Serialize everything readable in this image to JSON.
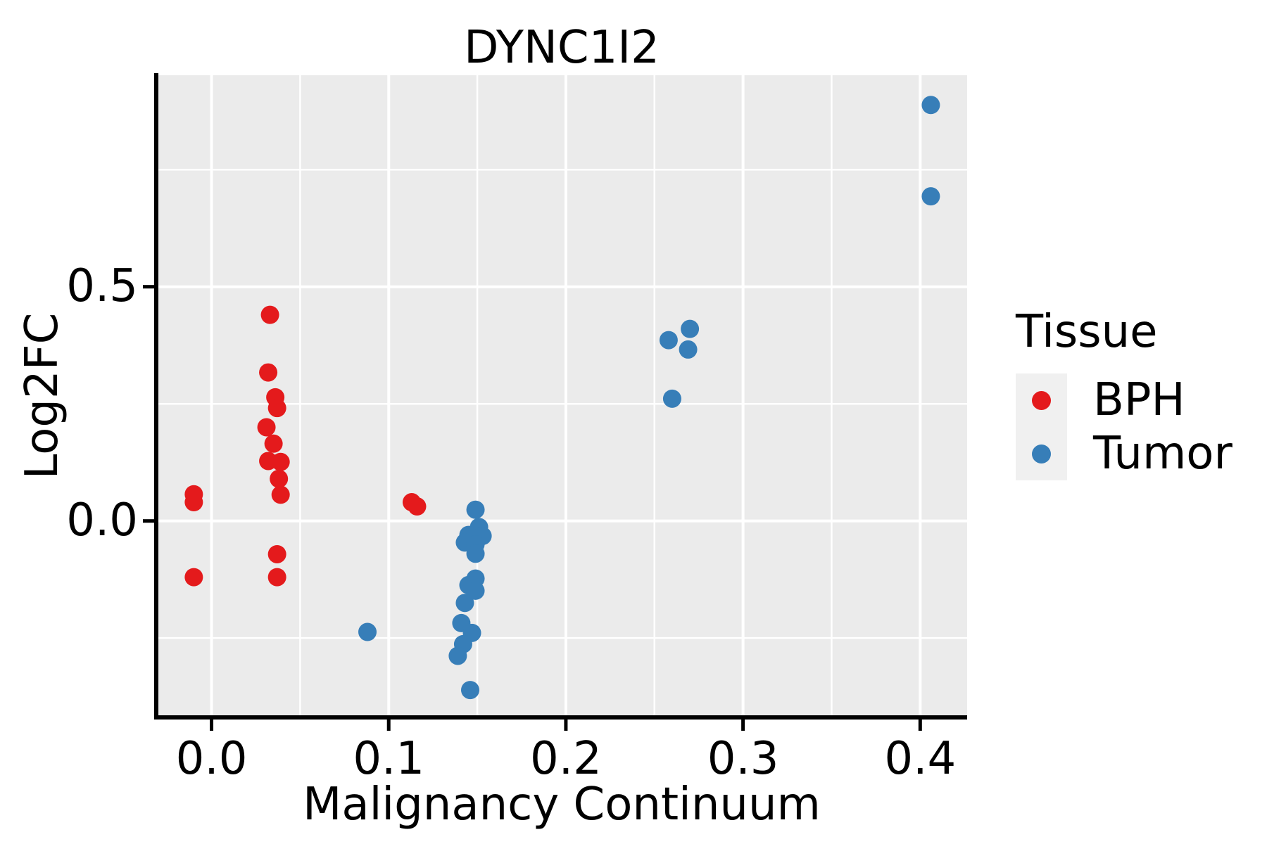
{
  "figure": {
    "title": "DYNC1I2",
    "xlabel": "Malignancy Continuum",
    "ylabel": "Log2FC"
  },
  "legend": {
    "title": "Tissue",
    "items": [
      {
        "label": "BPH",
        "color": "#E41A1C"
      },
      {
        "label": "Tumor",
        "color": "#377EB8"
      }
    ]
  },
  "colors": {
    "bph_red": "#E41A1C",
    "tumor_blue": "#377EB8",
    "panel_background": "#EBEBEB",
    "gridline": "#FFFFFF",
    "legend_key_background": "#F0F0F0",
    "axis": "#000000",
    "text": "#000000"
  },
  "chart_data": {
    "type": "scatter",
    "title": "DYNC1I2",
    "xlabel": "Malignancy Continuum",
    "ylabel": "Log2FC",
    "xlim": [
      -0.0312,
      0.4265
    ],
    "ylim": [
      -0.4194,
      0.9515
    ],
    "x_major_ticks": [
      0.0,
      0.1,
      0.2,
      0.3,
      0.4
    ],
    "x_tick_labels": [
      "0.0",
      "0.1",
      "0.2",
      "0.3",
      "0.4"
    ],
    "x_minor_ticks": [
      0.05,
      0.15,
      0.25,
      0.35
    ],
    "y_major_ticks": [
      0.0,
      0.5
    ],
    "y_tick_labels": [
      "0.0",
      "0.5"
    ],
    "y_minor_ticks": [
      -0.25,
      0.25,
      0.75
    ],
    "grid": true,
    "background": "#EBEBEB",
    "gridline_color": "#FFFFFF",
    "marker_radius": 13,
    "legend_position": "right",
    "legend_title": "Tissue",
    "series": [
      {
        "name": "BPH",
        "color": "#E41A1C",
        "points": [
          [
            -0.01,
            0.057
          ],
          [
            -0.01,
            0.04
          ],
          [
            -0.01,
            -0.12
          ],
          [
            0.033,
            0.44
          ],
          [
            0.032,
            0.317
          ],
          [
            0.036,
            0.264
          ],
          [
            0.037,
            0.241
          ],
          [
            0.031,
            0.2
          ],
          [
            0.035,
            0.165
          ],
          [
            0.032,
            0.128
          ],
          [
            0.039,
            0.126
          ],
          [
            0.038,
            0.09
          ],
          [
            0.039,
            0.056
          ],
          [
            0.037,
            -0.071
          ],
          [
            0.037,
            -0.12
          ],
          [
            0.113,
            0.04
          ],
          [
            0.116,
            0.031
          ]
        ]
      },
      {
        "name": "Tumor",
        "color": "#377EB8",
        "points": [
          [
            0.088,
            -0.237
          ],
          [
            0.149,
            0.024
          ],
          [
            0.151,
            -0.013
          ],
          [
            0.145,
            -0.03
          ],
          [
            0.153,
            -0.032
          ],
          [
            0.143,
            -0.046
          ],
          [
            0.149,
            -0.05
          ],
          [
            0.149,
            -0.07
          ],
          [
            0.149,
            -0.123
          ],
          [
            0.145,
            -0.137
          ],
          [
            0.149,
            -0.149
          ],
          [
            0.143,
            -0.175
          ],
          [
            0.141,
            -0.218
          ],
          [
            0.147,
            -0.239
          ],
          [
            0.142,
            -0.263
          ],
          [
            0.139,
            -0.288
          ],
          [
            0.146,
            -0.361
          ],
          [
            0.27,
            0.41
          ],
          [
            0.258,
            0.386
          ],
          [
            0.269,
            0.366
          ],
          [
            0.26,
            0.261
          ],
          [
            0.406,
            0.888
          ],
          [
            0.406,
            0.693
          ]
        ]
      }
    ]
  }
}
